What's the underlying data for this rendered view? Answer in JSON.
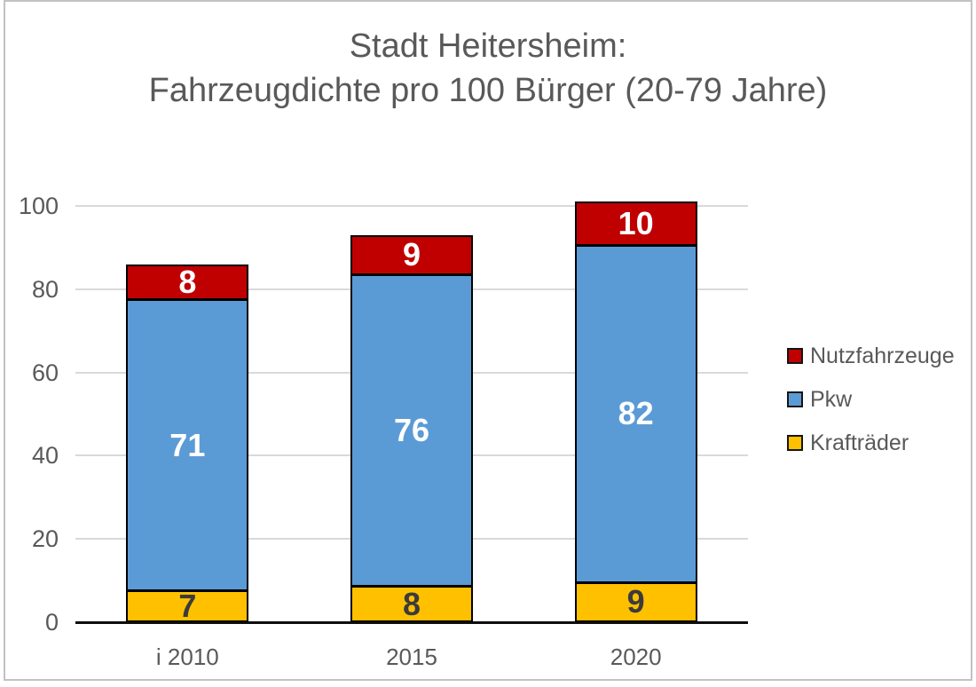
{
  "title": {
    "line1": "Stadt Heitersheim:",
    "line2": "Fahrzeugdichte pro 100 Bürger (20-79 Jahre)"
  },
  "chart_data": {
    "type": "bar",
    "stacked": true,
    "title": "Stadt Heitersheim: Fahrzeugdichte pro 100 Bürger (20-79 Jahre)",
    "categories": [
      "i 2010",
      "2015",
      "2020"
    ],
    "series": [
      {
        "name": "Krafträder",
        "values": [
          7,
          8,
          9
        ],
        "color": "#FFC000",
        "label_color": "#3B3B3B"
      },
      {
        "name": "Pkw",
        "values": [
          71,
          76,
          82
        ],
        "color": "#5B9BD5",
        "label_color": "#FFFFFF"
      },
      {
        "name": "Nutzfahrzeuge",
        "values": [
          8,
          9,
          10
        ],
        "color": "#C00000",
        "label_color": "#FFFFFF"
      }
    ],
    "ylim": [
      0,
      100
    ],
    "y_ticks": [
      0,
      20,
      40,
      60,
      80,
      100
    ],
    "grid": true,
    "gridline_color": "#D9D9D9",
    "axis_line_color": "#0d0d0d",
    "bar_border_color": "#000000",
    "text_color": "#595959",
    "legend": {
      "position": "right",
      "entries": [
        "Nutzfahrzeuge",
        "Pkw",
        "Krafträder"
      ]
    }
  }
}
